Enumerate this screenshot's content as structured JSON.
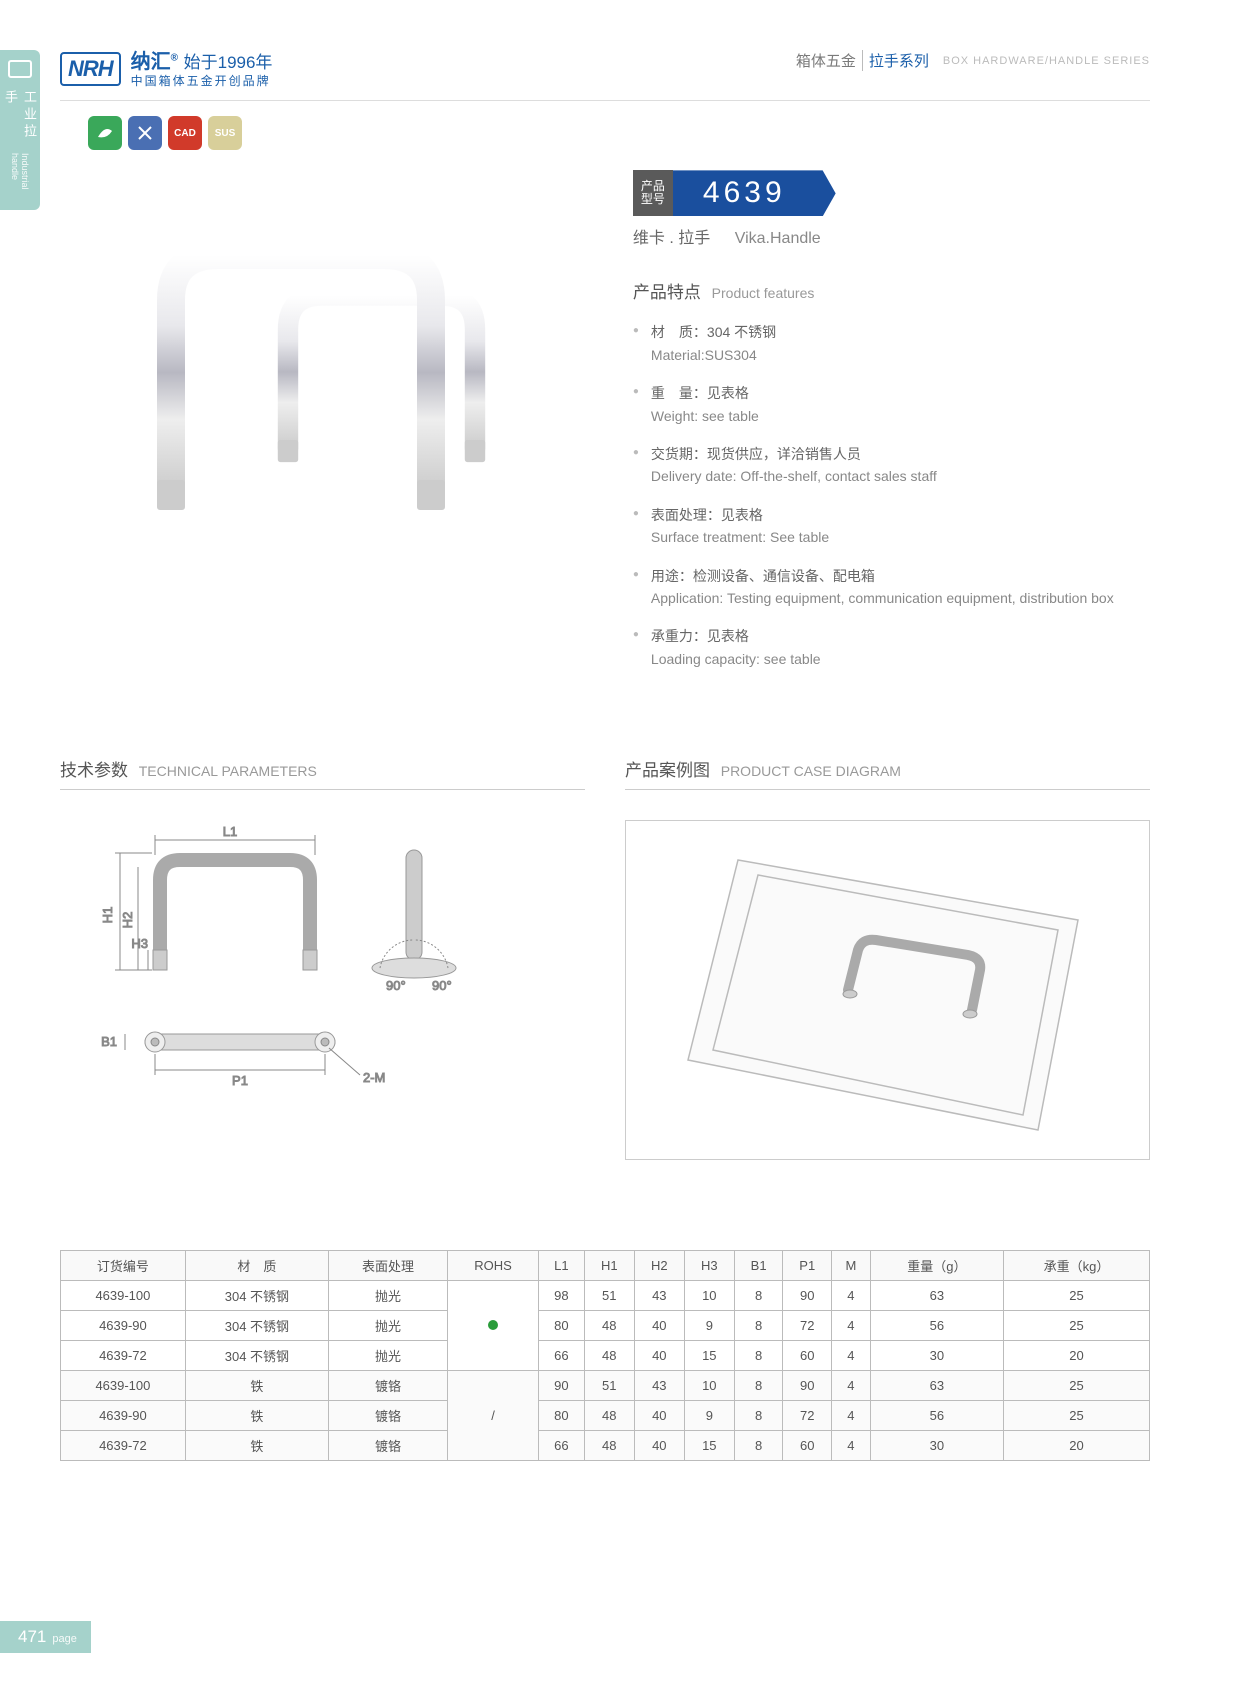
{
  "header": {
    "logo_mark": "NRH",
    "logo_line1_a": "纳汇",
    "logo_line1_b": "始于1996年",
    "logo_line2": "中国箱体五金开创品牌",
    "right_cn1": "箱体五金",
    "right_cn2": "拉手系列",
    "right_en": "BOX HARDWARE/HANDLE SERIES"
  },
  "side_tab": {
    "cn": "工业拉手",
    "en": "Industrial handle"
  },
  "badges": [
    {
      "bg": "#3aa85a"
    },
    {
      "bg": "#4a6fb3"
    },
    {
      "bg": "#d13a2a",
      "text": "CAD"
    },
    {
      "bg": "#d8cf9a",
      "text": "SUS"
    }
  ],
  "model": {
    "label1": "产品",
    "label2": "型号",
    "number": "4639",
    "subtitle_cn": "维卡 . 拉手",
    "subtitle_en": "Vika.Handle"
  },
  "features": {
    "heading_cn": "产品特点",
    "heading_en": "Product features",
    "items": [
      {
        "cn": "材　质：304 不锈钢",
        "en": "Material:SUS304"
      },
      {
        "cn": "重　量：见表格",
        "en": "Weight: see table"
      },
      {
        "cn": "交货期：现货供应，详洽销售人员",
        "en": "Delivery date: Off-the-shelf, contact sales staff"
      },
      {
        "cn": "表面处理：见表格",
        "en": "Surface treatment: See table"
      },
      {
        "cn": "用途：检测设备、通信设备、配电箱",
        "en": "Application: Testing equipment, communication equipment, distribution box"
      },
      {
        "cn": "承重力：见表格",
        "en": "Loading capacity: see table"
      }
    ]
  },
  "tech": {
    "heading_cn": "技术参数",
    "heading_en": "TECHNICAL PARAMETERS",
    "labels": {
      "L1": "L1",
      "H1": "H1",
      "H2": "H2",
      "H3": "H3",
      "B1": "B1",
      "P1": "P1",
      "twoM": "2-M",
      "deg": "90°"
    }
  },
  "case": {
    "heading_cn": "产品案例图",
    "heading_en": "PRODUCT CASE DIAGRAM"
  },
  "table": {
    "headers": [
      "订货编号",
      "材　质",
      "表面处理",
      "ROHS",
      "L1",
      "H1",
      "H2",
      "H3",
      "B1",
      "P1",
      "M",
      "重量（g）",
      "承重（kg）"
    ],
    "rohs_group1": "●",
    "rohs_group2": "/",
    "rows": [
      [
        "4639-100",
        "304 不锈钢",
        "抛光",
        "98",
        "51",
        "43",
        "10",
        "8",
        "90",
        "4",
        "63",
        "25"
      ],
      [
        "4639-90",
        "304 不锈钢",
        "抛光",
        "80",
        "48",
        "40",
        "9",
        "8",
        "72",
        "4",
        "56",
        "25"
      ],
      [
        "4639-72",
        "304 不锈钢",
        "抛光",
        "66",
        "48",
        "40",
        "15",
        "8",
        "60",
        "4",
        "30",
        "20"
      ],
      [
        "4639-100",
        "铁",
        "镀铬",
        "90",
        "51",
        "43",
        "10",
        "8",
        "90",
        "4",
        "63",
        "25"
      ],
      [
        "4639-90",
        "铁",
        "镀铬",
        "80",
        "48",
        "40",
        "9",
        "8",
        "72",
        "4",
        "56",
        "25"
      ],
      [
        "4639-72",
        "铁",
        "镀铬",
        "66",
        "48",
        "40",
        "15",
        "8",
        "60",
        "4",
        "30",
        "20"
      ]
    ]
  },
  "pagenum": {
    "num": "471",
    "label": "page"
  },
  "colors": {
    "brand": "#1b5faa",
    "accent": "#a5d2cb",
    "gray": "#888"
  }
}
